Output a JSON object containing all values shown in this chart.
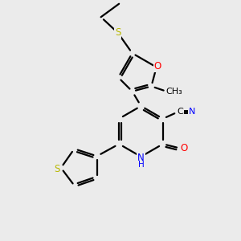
{
  "bg_color": "#ebebeb",
  "bond_color": "#000000",
  "S_color": "#b8b800",
  "O_color": "#ff0000",
  "N_color": "#0000ff",
  "C_color": "#000000",
  "figsize": [
    3.0,
    3.0
  ],
  "dpi": 100,
  "lw": 1.6,
  "fs": 8.5,
  "xlim": [
    0,
    10
  ],
  "ylim": [
    0,
    10
  ]
}
